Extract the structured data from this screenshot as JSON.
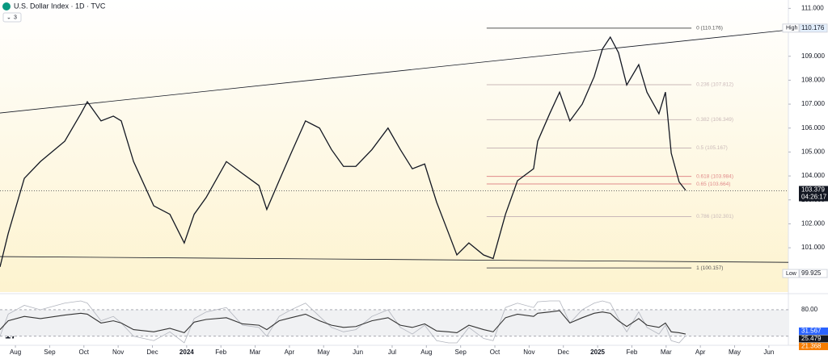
{
  "header": {
    "symbol": "U.S. Dollar Index · 1D · TVC",
    "indicator_count": "3"
  },
  "chart_data": {
    "type": "line",
    "color": "#131722",
    "x": [
      -0.45,
      -0.21,
      0.26,
      0.73,
      1.44,
      1.91,
      2.1,
      2.5,
      2.86,
      3.09,
      3.45,
      4.04,
      4.51,
      4.93,
      5.22,
      5.57,
      6.16,
      6.63,
      7.11,
      7.34,
      7.7,
      8.05,
      8.47,
      8.88,
      9.23,
      9.58,
      9.94,
      10.41,
      10.88,
      11.24,
      11.59,
      11.95,
      12.3,
      12.65,
      12.89,
      13.24,
      13.67,
      13.95,
      14.31,
      14.66,
      15.13,
      15.25,
      15.6,
      15.89,
      16.19,
      16.55,
      16.9,
      17.14,
      17.37,
      17.61,
      17.85,
      18.2,
      18.44,
      18.79,
      18.98,
      19.15,
      19.38,
      19.57
    ],
    "values": [
      100.2,
      101.6,
      103.9,
      104.6,
      105.45,
      106.6,
      107.1,
      106.3,
      106.5,
      106.3,
      104.6,
      102.75,
      102.4,
      101.2,
      102.4,
      103.1,
      104.6,
      104.1,
      103.6,
      102.6,
      103.8,
      104.95,
      106.3,
      106.0,
      105.1,
      104.4,
      104.4,
      105.1,
      106.0,
      105.1,
      104.3,
      104.5,
      102.9,
      101.6,
      100.7,
      101.2,
      100.7,
      100.55,
      102.4,
      103.8,
      104.3,
      105.45,
      106.6,
      107.5,
      106.3,
      107.0,
      108.15,
      109.3,
      109.8,
      109.15,
      107.8,
      108.65,
      107.5,
      106.6,
      107.5,
      104.95,
      103.75,
      103.4
    ],
    "xlim": [
      -0.45,
      22.57
    ],
    "xticks": [
      {
        "value": 0,
        "label": "Aug"
      },
      {
        "value": 1,
        "label": "Sep"
      },
      {
        "value": 2,
        "label": "Oct"
      },
      {
        "value": 3,
        "label": "Nov"
      },
      {
        "value": 4,
        "label": "Dec"
      },
      {
        "value": 5,
        "label": "2024"
      },
      {
        "value": 6,
        "label": "Feb"
      },
      {
        "value": 7,
        "label": "Mar"
      },
      {
        "value": 8,
        "label": "Apr"
      },
      {
        "value": 9,
        "label": "May"
      },
      {
        "value": 10,
        "label": "Jun"
      },
      {
        "value": 11,
        "label": "Jul"
      },
      {
        "value": 12,
        "label": "Aug"
      },
      {
        "value": 13,
        "label": "Sep"
      },
      {
        "value": 14,
        "label": "Oct"
      },
      {
        "value": 15,
        "label": "Nov"
      },
      {
        "value": 16,
        "label": "Dec"
      },
      {
        "value": 17,
        "label": "2025"
      },
      {
        "value": 18,
        "label": "Feb"
      },
      {
        "value": 19,
        "label": "Mar"
      },
      {
        "value": 20,
        "label": "Apr"
      },
      {
        "value": 21,
        "label": "May"
      },
      {
        "value": 22,
        "label": "Jun"
      }
    ],
    "ylim": [
      99.15,
      111.35
    ],
    "yticks": [
      {
        "value": 101,
        "label": "101.000"
      },
      {
        "value": 102,
        "label": "102.000"
      },
      {
        "value": 103,
        "label": "103.000"
      },
      {
        "value": 104,
        "label": "104.000"
      },
      {
        "value": 105,
        "label": "105.000"
      },
      {
        "value": 106,
        "label": "106.000"
      },
      {
        "value": 107,
        "label": "107.000"
      },
      {
        "value": 108,
        "label": "108.000"
      },
      {
        "value": 109,
        "label": "109.000"
      },
      {
        "value": 111,
        "label": "111.000"
      }
    ],
    "fib_x_range": [
      13.76,
      19.74
    ],
    "fib_levels": [
      {
        "label": "0 (110.176)",
        "value": 110.176,
        "color": "#555555"
      },
      {
        "label": "0.236 (107.812)",
        "value": 107.812,
        "color": "#c9b8b8"
      },
      {
        "label": "0.382 (106.349)",
        "value": 106.349,
        "color": "#c9b8b8"
      },
      {
        "label": "0.5 (105.167)",
        "value": 105.167,
        "color": "#c9b8b8"
      },
      {
        "label": "0.618 (103.984)",
        "value": 103.984,
        "color": "#e08a8a"
      },
      {
        "label": "0.65 (103.664)",
        "value": 103.664,
        "color": "#e08a8a"
      },
      {
        "label": "0.786 (102.301)",
        "value": 102.301,
        "color": "#c9b8b8"
      },
      {
        "label": "1 (100.157)",
        "value": 100.157,
        "color": "#555555"
      }
    ],
    "trendlines": [
      {
        "x": [
          -0.45,
          22.57
        ],
        "values": [
          106.63,
          110.1
        ]
      },
      {
        "x": [
          -0.45,
          22.57
        ],
        "values": [
          100.63,
          100.39
        ]
      }
    ],
    "price_tags": [
      {
        "name": "High",
        "value": 110.176,
        "label": "110.176"
      },
      {
        "name": "Low",
        "value": 99.925,
        "label": "99.925"
      }
    ],
    "last_price": {
      "value": 103.379,
      "label": "103.379",
      "countdown": "04:26:17"
    },
    "oscillator": {
      "ylim": [
        5,
        111
      ],
      "levels": [
        {
          "value": 80,
          "label": "80.00"
        },
        {
          "value": 20
        }
      ],
      "series": [
        {
          "color": "#333333",
          "values": [
            35,
            55,
            65,
            60,
            68,
            72,
            70,
            50,
            55,
            50,
            35,
            30,
            38,
            28,
            52,
            58,
            62,
            48,
            45,
            35,
            55,
            62,
            70,
            55,
            45,
            40,
            42,
            55,
            62,
            45,
            40,
            48,
            32,
            30,
            28,
            45,
            35,
            30,
            62,
            70,
            65,
            72,
            75,
            78,
            50,
            62,
            72,
            75,
            72,
            55,
            42,
            60,
            45,
            40,
            50,
            30,
            28,
            25
          ]
        },
        {
          "color": "#b2b5be",
          "values": [
            20,
            70,
            90,
            80,
            95,
            100,
            95,
            55,
            65,
            50,
            20,
            10,
            30,
            5,
            60,
            75,
            85,
            45,
            40,
            20,
            65,
            80,
            95,
            65,
            40,
            30,
            35,
            65,
            80,
            40,
            25,
            45,
            10,
            5,
            5,
            40,
            15,
            10,
            85,
            95,
            85,
            98,
            100,
            100,
            50,
            80,
            95,
            100,
            95,
            60,
            30,
            75,
            40,
            25,
            45,
            10,
            5,
            21
          ]
        }
      ],
      "last_tags": [
        {
          "value": 31.567,
          "label": "31.567",
          "color": "#2962ff"
        },
        {
          "value": 25.479,
          "label": "25.479",
          "color": "#131722"
        },
        {
          "value": 21.368,
          "label": "21.368",
          "color": "#f57c00"
        }
      ]
    }
  }
}
